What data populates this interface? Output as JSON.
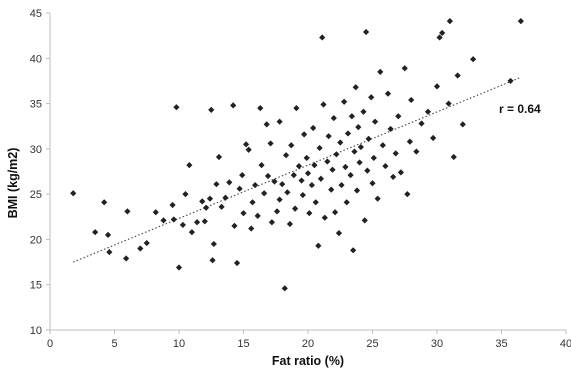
{
  "chart_data": {
    "type": "scatter",
    "title": "",
    "xlabel": "Fat ratio (%)",
    "ylabel": "BMI (kg/m2)",
    "xlim": [
      0,
      40
    ],
    "ylim": [
      10,
      45
    ],
    "x_ticks": [
      "0",
      "5",
      "10",
      "15",
      "20",
      "25",
      "30",
      "35",
      "40"
    ],
    "y_ticks": [
      "10",
      "15",
      "20",
      "25",
      "30",
      "35",
      "40",
      "45"
    ],
    "grid": false,
    "legend": "none",
    "marker": "diamond",
    "marker_color": "#222222",
    "trendline": {
      "style": "dotted",
      "x": [
        1.8,
        36.5
      ],
      "y": [
        17.5,
        37.9
      ]
    },
    "annotations": [
      {
        "text": "r = 0.64",
        "x": 35.8,
        "y": 35.0
      }
    ],
    "series": [
      {
        "values": [
          [
            1.8,
            25.1
          ],
          [
            3.5,
            20.8
          ],
          [
            4.2,
            24.1
          ],
          [
            4.6,
            18.6
          ],
          [
            4.5,
            20.5
          ],
          [
            5.9,
            17.9
          ],
          [
            6.0,
            23.1
          ],
          [
            7.0,
            19.0
          ],
          [
            7.5,
            19.6
          ],
          [
            8.2,
            23.0
          ],
          [
            8.8,
            22.1
          ],
          [
            9.5,
            23.8
          ],
          [
            9.8,
            34.6
          ],
          [
            9.6,
            22.2
          ],
          [
            10.0,
            16.9
          ],
          [
            10.3,
            21.6
          ],
          [
            10.5,
            25.0
          ],
          [
            10.8,
            28.2
          ],
          [
            11.0,
            20.8
          ],
          [
            11.4,
            21.9
          ],
          [
            11.8,
            24.2
          ],
          [
            12.0,
            22.0
          ],
          [
            12.1,
            23.5
          ],
          [
            12.4,
            24.5
          ],
          [
            12.5,
            34.3
          ],
          [
            12.6,
            17.7
          ],
          [
            12.7,
            19.5
          ],
          [
            12.9,
            26.1
          ],
          [
            13.1,
            29.1
          ],
          [
            13.3,
            23.6
          ],
          [
            13.6,
            24.6
          ],
          [
            13.9,
            26.3
          ],
          [
            14.2,
            34.8
          ],
          [
            14.3,
            21.5
          ],
          [
            14.5,
            17.4
          ],
          [
            14.7,
            25.6
          ],
          [
            14.9,
            27.1
          ],
          [
            15.0,
            22.9
          ],
          [
            15.2,
            30.5
          ],
          [
            15.4,
            29.9
          ],
          [
            15.6,
            21.2
          ],
          [
            15.7,
            24.1
          ],
          [
            15.9,
            26.0
          ],
          [
            16.1,
            22.6
          ],
          [
            16.3,
            34.5
          ],
          [
            16.4,
            28.2
          ],
          [
            16.6,
            25.1
          ],
          [
            16.8,
            32.7
          ],
          [
            16.9,
            27.0
          ],
          [
            17.1,
            30.6
          ],
          [
            17.2,
            21.9
          ],
          [
            17.4,
            26.4
          ],
          [
            17.6,
            23.1
          ],
          [
            17.8,
            24.4
          ],
          [
            17.8,
            33.0
          ],
          [
            18.0,
            26.1
          ],
          [
            18.2,
            14.6
          ],
          [
            18.3,
            29.3
          ],
          [
            18.4,
            25.2
          ],
          [
            18.6,
            21.7
          ],
          [
            18.7,
            30.4
          ],
          [
            18.9,
            27.1
          ],
          [
            19.0,
            23.4
          ],
          [
            19.1,
            34.5
          ],
          [
            19.3,
            28.1
          ],
          [
            19.5,
            26.5
          ],
          [
            19.6,
            24.9
          ],
          [
            19.7,
            31.6
          ],
          [
            19.9,
            29.0
          ],
          [
            20.0,
            27.3
          ],
          [
            20.1,
            22.9
          ],
          [
            20.3,
            26.0
          ],
          [
            20.4,
            32.3
          ],
          [
            20.5,
            28.2
          ],
          [
            20.6,
            24.1
          ],
          [
            20.8,
            19.3
          ],
          [
            20.9,
            30.1
          ],
          [
            21.0,
            26.7
          ],
          [
            21.1,
            42.3
          ],
          [
            21.2,
            34.9
          ],
          [
            21.3,
            22.4
          ],
          [
            21.5,
            28.6
          ],
          [
            21.6,
            31.4
          ],
          [
            21.8,
            25.5
          ],
          [
            21.9,
            27.7
          ],
          [
            22.0,
            33.4
          ],
          [
            22.1,
            23.0
          ],
          [
            22.2,
            29.4
          ],
          [
            22.4,
            20.7
          ],
          [
            22.5,
            30.7
          ],
          [
            22.6,
            26.0
          ],
          [
            22.8,
            35.2
          ],
          [
            22.9,
            28.0
          ],
          [
            23.0,
            24.1
          ],
          [
            23.1,
            31.7
          ],
          [
            23.3,
            27.1
          ],
          [
            23.4,
            33.6
          ],
          [
            23.5,
            18.8
          ],
          [
            23.6,
            29.7
          ],
          [
            23.7,
            36.8
          ],
          [
            23.8,
            25.4
          ],
          [
            23.9,
            32.4
          ],
          [
            24.0,
            28.5
          ],
          [
            24.1,
            30.2
          ],
          [
            24.3,
            34.1
          ],
          [
            24.4,
            22.1
          ],
          [
            24.5,
            42.9
          ],
          [
            24.6,
            27.6
          ],
          [
            24.7,
            31.1
          ],
          [
            24.9,
            35.7
          ],
          [
            25.0,
            26.2
          ],
          [
            25.1,
            29.0
          ],
          [
            25.2,
            33.0
          ],
          [
            25.4,
            24.5
          ],
          [
            25.6,
            38.5
          ],
          [
            25.8,
            30.4
          ],
          [
            26.0,
            28.1
          ],
          [
            26.2,
            36.1
          ],
          [
            26.4,
            32.2
          ],
          [
            26.6,
            26.9
          ],
          [
            26.8,
            29.5
          ],
          [
            27.0,
            33.6
          ],
          [
            27.2,
            27.4
          ],
          [
            27.5,
            38.9
          ],
          [
            27.7,
            25.0
          ],
          [
            27.9,
            30.8
          ],
          [
            28.0,
            35.4
          ],
          [
            28.4,
            29.7
          ],
          [
            28.8,
            32.8
          ],
          [
            29.3,
            34.1
          ],
          [
            29.7,
            31.2
          ],
          [
            30.0,
            36.9
          ],
          [
            30.2,
            42.3
          ],
          [
            30.4,
            42.8
          ],
          [
            30.9,
            35.0
          ],
          [
            31.0,
            44.1
          ],
          [
            31.3,
            29.1
          ],
          [
            31.6,
            38.1
          ],
          [
            32.0,
            32.7
          ],
          [
            32.8,
            39.9
          ],
          [
            35.7,
            37.5
          ],
          [
            36.5,
            44.1
          ]
        ]
      }
    ]
  }
}
